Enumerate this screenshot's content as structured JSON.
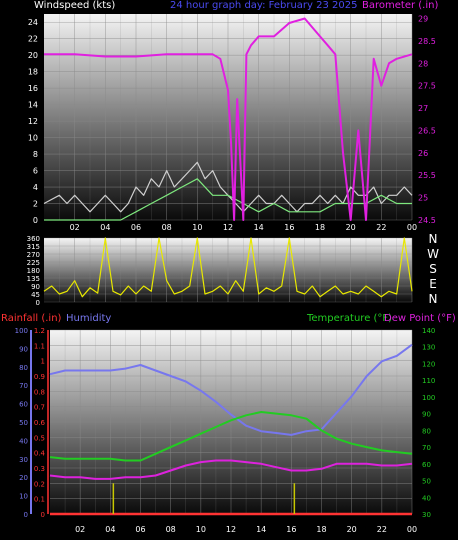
{
  "top": {
    "title_left": "Windspeed (kts)",
    "title_center": "24 hour graph day:  February 23 2025",
    "title_right": "Barometer (.in)"
  },
  "mid": {
    "compass": [
      "N",
      "W",
      "S",
      "E",
      "N"
    ]
  },
  "bottom": {
    "label_rain": "Rainfall (.in)",
    "label_hum": "Humidity",
    "label_temp": "Temperature (°F)",
    "label_dew": "Dew Point (°F)"
  },
  "colors": {
    "wind": "#cfcfcf",
    "gust": "#7ee87e",
    "baro": "#e020e0",
    "dir": "#e8e800",
    "hum": "#7777ee",
    "temp": "#22cc22",
    "dew": "#dd22dd",
    "rain": "#ff3333",
    "rainrate": "#c8c800",
    "title_center": "#4a4af0"
  },
  "chart_data": [
    {
      "type": "line",
      "title": "24 hour graph day:  February 23 2025",
      "ylabel": "Windspeed (kts)",
      "y2label": "Barometer (.in)",
      "x_ticks": [
        "02",
        "04",
        "06",
        "08",
        "10",
        "12",
        "14",
        "16",
        "18",
        "20",
        "22",
        "00"
      ],
      "ylim": [
        0,
        25
      ],
      "y_ticks": [
        "0",
        "2",
        "4",
        "6",
        "8",
        "10",
        "12",
        "14",
        "16",
        "18",
        "20",
        "22",
        "24"
      ],
      "y2lim": [
        24.5,
        29.1
      ],
      "y2_ticks": [
        "24.5",
        "25",
        "25.5",
        "26",
        "26.5",
        "27",
        "27.5",
        "28",
        "28.5",
        "29"
      ],
      "series": [
        {
          "key": "wind",
          "x": [
            0,
            1,
            1.5,
            2,
            2.5,
            3,
            3.5,
            4,
            4.5,
            5,
            5.5,
            6,
            6.5,
            7,
            7.5,
            8,
            8.5,
            9,
            9.5,
            10,
            10.5,
            11,
            11.5,
            12,
            12.5,
            13,
            13.5,
            14,
            14.5,
            15,
            15.5,
            16,
            16.5,
            17,
            17.5,
            18,
            18.5,
            19,
            19.5,
            20,
            20.5,
            21,
            21.5,
            22,
            22.5,
            23,
            23.5,
            24
          ],
          "y": [
            2,
            3,
            2,
            3,
            2,
            1,
            2,
            3,
            2,
            1,
            2,
            4,
            3,
            5,
            4,
            6,
            4,
            5,
            6,
            7,
            5,
            6,
            4,
            3,
            2,
            1,
            2,
            3,
            2,
            2,
            3,
            2,
            1,
            2,
            2,
            3,
            2,
            3,
            2,
            4,
            3,
            3,
            4,
            2,
            3,
            3,
            4,
            3
          ]
        },
        {
          "key": "gust",
          "x": [
            0,
            2,
            4,
            5,
            6,
            7,
            8,
            9,
            10,
            11,
            12,
            13,
            14,
            15,
            16,
            17,
            18,
            19,
            20,
            21,
            22,
            23,
            24
          ],
          "y": [
            0,
            0,
            0,
            0,
            1,
            2,
            3,
            4,
            5,
            3,
            3,
            2,
            1,
            2,
            1,
            1,
            1,
            2,
            2,
            2,
            3,
            2,
            2
          ]
        },
        {
          "key": "baro",
          "x": [
            0,
            2,
            4,
            6,
            8,
            10,
            11,
            11.5,
            12,
            12.2,
            12.4,
            12.6,
            13,
            13.2,
            13.5,
            14,
            15,
            16,
            17,
            18,
            18.5,
            19,
            19.5,
            20,
            20.5,
            21,
            21.5,
            22,
            22.5,
            23,
            24
          ],
          "y": [
            28.2,
            28.2,
            28.15,
            28.15,
            28.2,
            28.2,
            28.2,
            28.1,
            27.4,
            26.2,
            24.5,
            27.2,
            24.5,
            28.2,
            28.4,
            28.6,
            28.6,
            28.9,
            29.0,
            28.6,
            28.4,
            28.2,
            26.0,
            24.5,
            26.5,
            24.5,
            28.1,
            27.5,
            28.0,
            28.1,
            28.2
          ]
        }
      ]
    },
    {
      "type": "line",
      "ylabel": "Wind direction",
      "ylim": [
        0,
        360
      ],
      "y_ticks": [
        "0",
        "45",
        "90",
        "135",
        "180",
        "225",
        "270",
        "315",
        "360"
      ],
      "series": [
        {
          "key": "dir",
          "x": [
            0,
            0.5,
            1,
            1.5,
            2,
            2.5,
            3,
            3.5,
            4,
            4.5,
            5,
            5.5,
            6,
            6.5,
            7,
            7.5,
            8,
            8.5,
            9,
            9.5,
            10,
            10.5,
            11,
            11.5,
            12,
            12.5,
            13,
            13.5,
            14,
            14.5,
            15,
            15.5,
            16,
            16.5,
            17,
            17.5,
            18,
            18.5,
            19,
            19.5,
            20,
            20.5,
            21,
            21.5,
            22,
            22.5,
            23,
            23.5,
            24
          ],
          "y": [
            60,
            90,
            45,
            60,
            120,
            30,
            80,
            50,
            360,
            60,
            40,
            90,
            45,
            90,
            60,
            360,
            120,
            45,
            60,
            90,
            360,
            45,
            60,
            90,
            45,
            120,
            60,
            360,
            45,
            80,
            60,
            90,
            360,
            60,
            45,
            90,
            30,
            60,
            90,
            45,
            60,
            45,
            90,
            60,
            30,
            60,
            45,
            360,
            60
          ]
        }
      ]
    },
    {
      "type": "line",
      "x_ticks": [
        "02",
        "04",
        "06",
        "08",
        "10",
        "12",
        "14",
        "16",
        "18",
        "20",
        "22",
        "00"
      ],
      "ylabel": "Humidity",
      "ylim": [
        0,
        100
      ],
      "y_ticks": [
        "0",
        "10",
        "20",
        "30",
        "40",
        "50",
        "60",
        "70",
        "80",
        "90",
        "100"
      ],
      "y_rain_ticks": [
        "0",
        "0.1",
        "0.2",
        "0.3",
        "0.4",
        "0.5",
        "0.6",
        "0.7",
        "0.8",
        "0.9",
        "1",
        "1.1",
        "1.2"
      ],
      "y2lim": [
        30,
        140
      ],
      "y2_ticks": [
        "30",
        "40",
        "50",
        "60",
        "70",
        "80",
        "90",
        "100",
        "110",
        "120",
        "130",
        "140"
      ],
      "series": [
        {
          "key": "hum",
          "axis": "left",
          "x": [
            0,
            1,
            2,
            3,
            4,
            5,
            6,
            7,
            8,
            9,
            10,
            11,
            12,
            13,
            14,
            15,
            16,
            17,
            18,
            19,
            20,
            21,
            22,
            23,
            24
          ],
          "y": [
            76,
            78,
            78,
            78,
            78,
            79,
            81,
            78,
            75,
            72,
            67,
            61,
            54,
            48,
            45,
            44,
            43,
            45,
            46,
            55,
            64,
            75,
            83,
            86,
            92
          ]
        },
        {
          "key": "temp",
          "axis": "right",
          "x": [
            0,
            1,
            2,
            3,
            4,
            5,
            6,
            7,
            8,
            9,
            10,
            11,
            12,
            13,
            14,
            15,
            16,
            17,
            18,
            19,
            20,
            21,
            22,
            23,
            24
          ],
          "y": [
            64,
            63,
            63,
            63,
            63,
            62,
            62,
            66,
            70,
            74,
            78,
            82,
            86,
            89,
            91,
            90,
            89,
            87,
            80,
            75,
            72,
            70,
            68,
            67,
            66
          ]
        },
        {
          "key": "dew",
          "axis": "right",
          "x": [
            0,
            1,
            2,
            3,
            4,
            5,
            6,
            7,
            8,
            9,
            10,
            11,
            12,
            13,
            14,
            15,
            16,
            17,
            18,
            19,
            20,
            21,
            22,
            23,
            24
          ],
          "y": [
            53,
            52,
            52,
            51,
            51,
            52,
            52,
            53,
            56,
            59,
            61,
            62,
            62,
            61,
            60,
            58,
            56,
            56,
            57,
            60,
            60,
            60,
            59,
            59,
            60
          ]
        },
        {
          "key": "rain",
          "axis": "rain",
          "x": [
            0,
            24
          ],
          "y": [
            0,
            0
          ]
        },
        {
          "key": "rainrate",
          "axis": "rain",
          "bars_x": [
            4.2,
            16.2
          ],
          "bars_y": [
            0.2,
            0.2
          ]
        }
      ]
    }
  ]
}
